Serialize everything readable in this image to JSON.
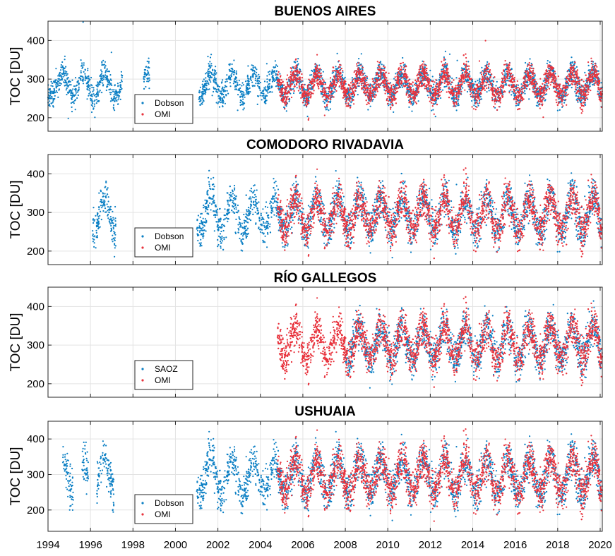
{
  "chart_data": [
    {
      "type": "scatter",
      "title": "BUENOS AIRES",
      "ylabel": "TOC [DU]",
      "xlim": [
        1994,
        2020.1
      ],
      "ylim": [
        165,
        450
      ],
      "yticks": [
        "200",
        "300",
        "400"
      ],
      "grid": true,
      "legend_position": "lower-left",
      "series": [
        {
          "name": "Dobson",
          "color": "#0b7fc4",
          "coverage": [
            [
              1994.0,
              1997.5
            ],
            [
              1998.5,
              1998.8
            ],
            [
              2001.1,
              2020.1
            ]
          ]
        },
        {
          "name": "OMI",
          "color": "#e8333d",
          "coverage": [
            [
              2004.8,
              2020.1
            ]
          ]
        }
      ],
      "summary": {
        "mean": 285,
        "seasonal_amplitude": 30,
        "peak_month": 9
      }
    },
    {
      "type": "scatter",
      "title": "COMODORO RIVADAVIA",
      "ylabel": "TOC [DU]",
      "xlim": [
        1994,
        2020.1
      ],
      "ylim": [
        165,
        450
      ],
      "yticks": [
        "200",
        "300",
        "400"
      ],
      "grid": true,
      "legend_position": "lower-left",
      "series": [
        {
          "name": "Dobson",
          "color": "#0b7fc4",
          "coverage": [
            [
              1996.1,
              1997.2
            ],
            [
              2001.0,
              2020.1
            ]
          ]
        },
        {
          "name": "OMI",
          "color": "#e8333d",
          "coverage": [
            [
              2004.8,
              2020.1
            ]
          ]
        }
      ],
      "summary": {
        "mean": 295,
        "seasonal_amplitude": 45,
        "peak_month": 9
      }
    },
    {
      "type": "scatter",
      "title": "RÍO GALLEGOS",
      "ylabel": "TOC [DU]",
      "xlim": [
        1994,
        2020.1
      ],
      "ylim": [
        165,
        450
      ],
      "yticks": [
        "200",
        "300",
        "400"
      ],
      "grid": true,
      "legend_position": "lower-left",
      "series": [
        {
          "name": "SAOZ",
          "color": "#0b7fc4",
          "coverage": [
            [
              2008.0,
              2020.1
            ]
          ]
        },
        {
          "name": "OMI",
          "color": "#e8333d",
          "coverage": [
            [
              2004.8,
              2020.1
            ]
          ]
        }
      ],
      "summary": {
        "mean": 305,
        "seasonal_amplitude": 45,
        "peak_month": 9
      }
    },
    {
      "type": "scatter",
      "title": "USHUAIA",
      "ylabel": "TOC [DU]",
      "xlim": [
        1994,
        2020.1
      ],
      "ylim": [
        140,
        450
      ],
      "yticks": [
        "200",
        "300",
        "400"
      ],
      "xticks": [
        "1994",
        "1996",
        "1998",
        "2000",
        "2002",
        "2004",
        "2006",
        "2008",
        "2010",
        "2012",
        "2014",
        "2016",
        "2018",
        "2020"
      ],
      "grid": true,
      "legend_position": "lower-left",
      "series": [
        {
          "name": "Dobson",
          "color": "#0b7fc4",
          "coverage": [
            [
              1994.7,
              1995.2
            ],
            [
              1995.6,
              1995.9
            ],
            [
              1996.3,
              1997.1
            ],
            [
              2001.0,
              2020.1
            ]
          ]
        },
        {
          "name": "OMI",
          "color": "#e8333d",
          "coverage": [
            [
              2004.8,
              2020.1
            ]
          ]
        }
      ],
      "summary": {
        "mean": 295,
        "seasonal_amplitude": 50,
        "peak_month": 9
      }
    }
  ]
}
